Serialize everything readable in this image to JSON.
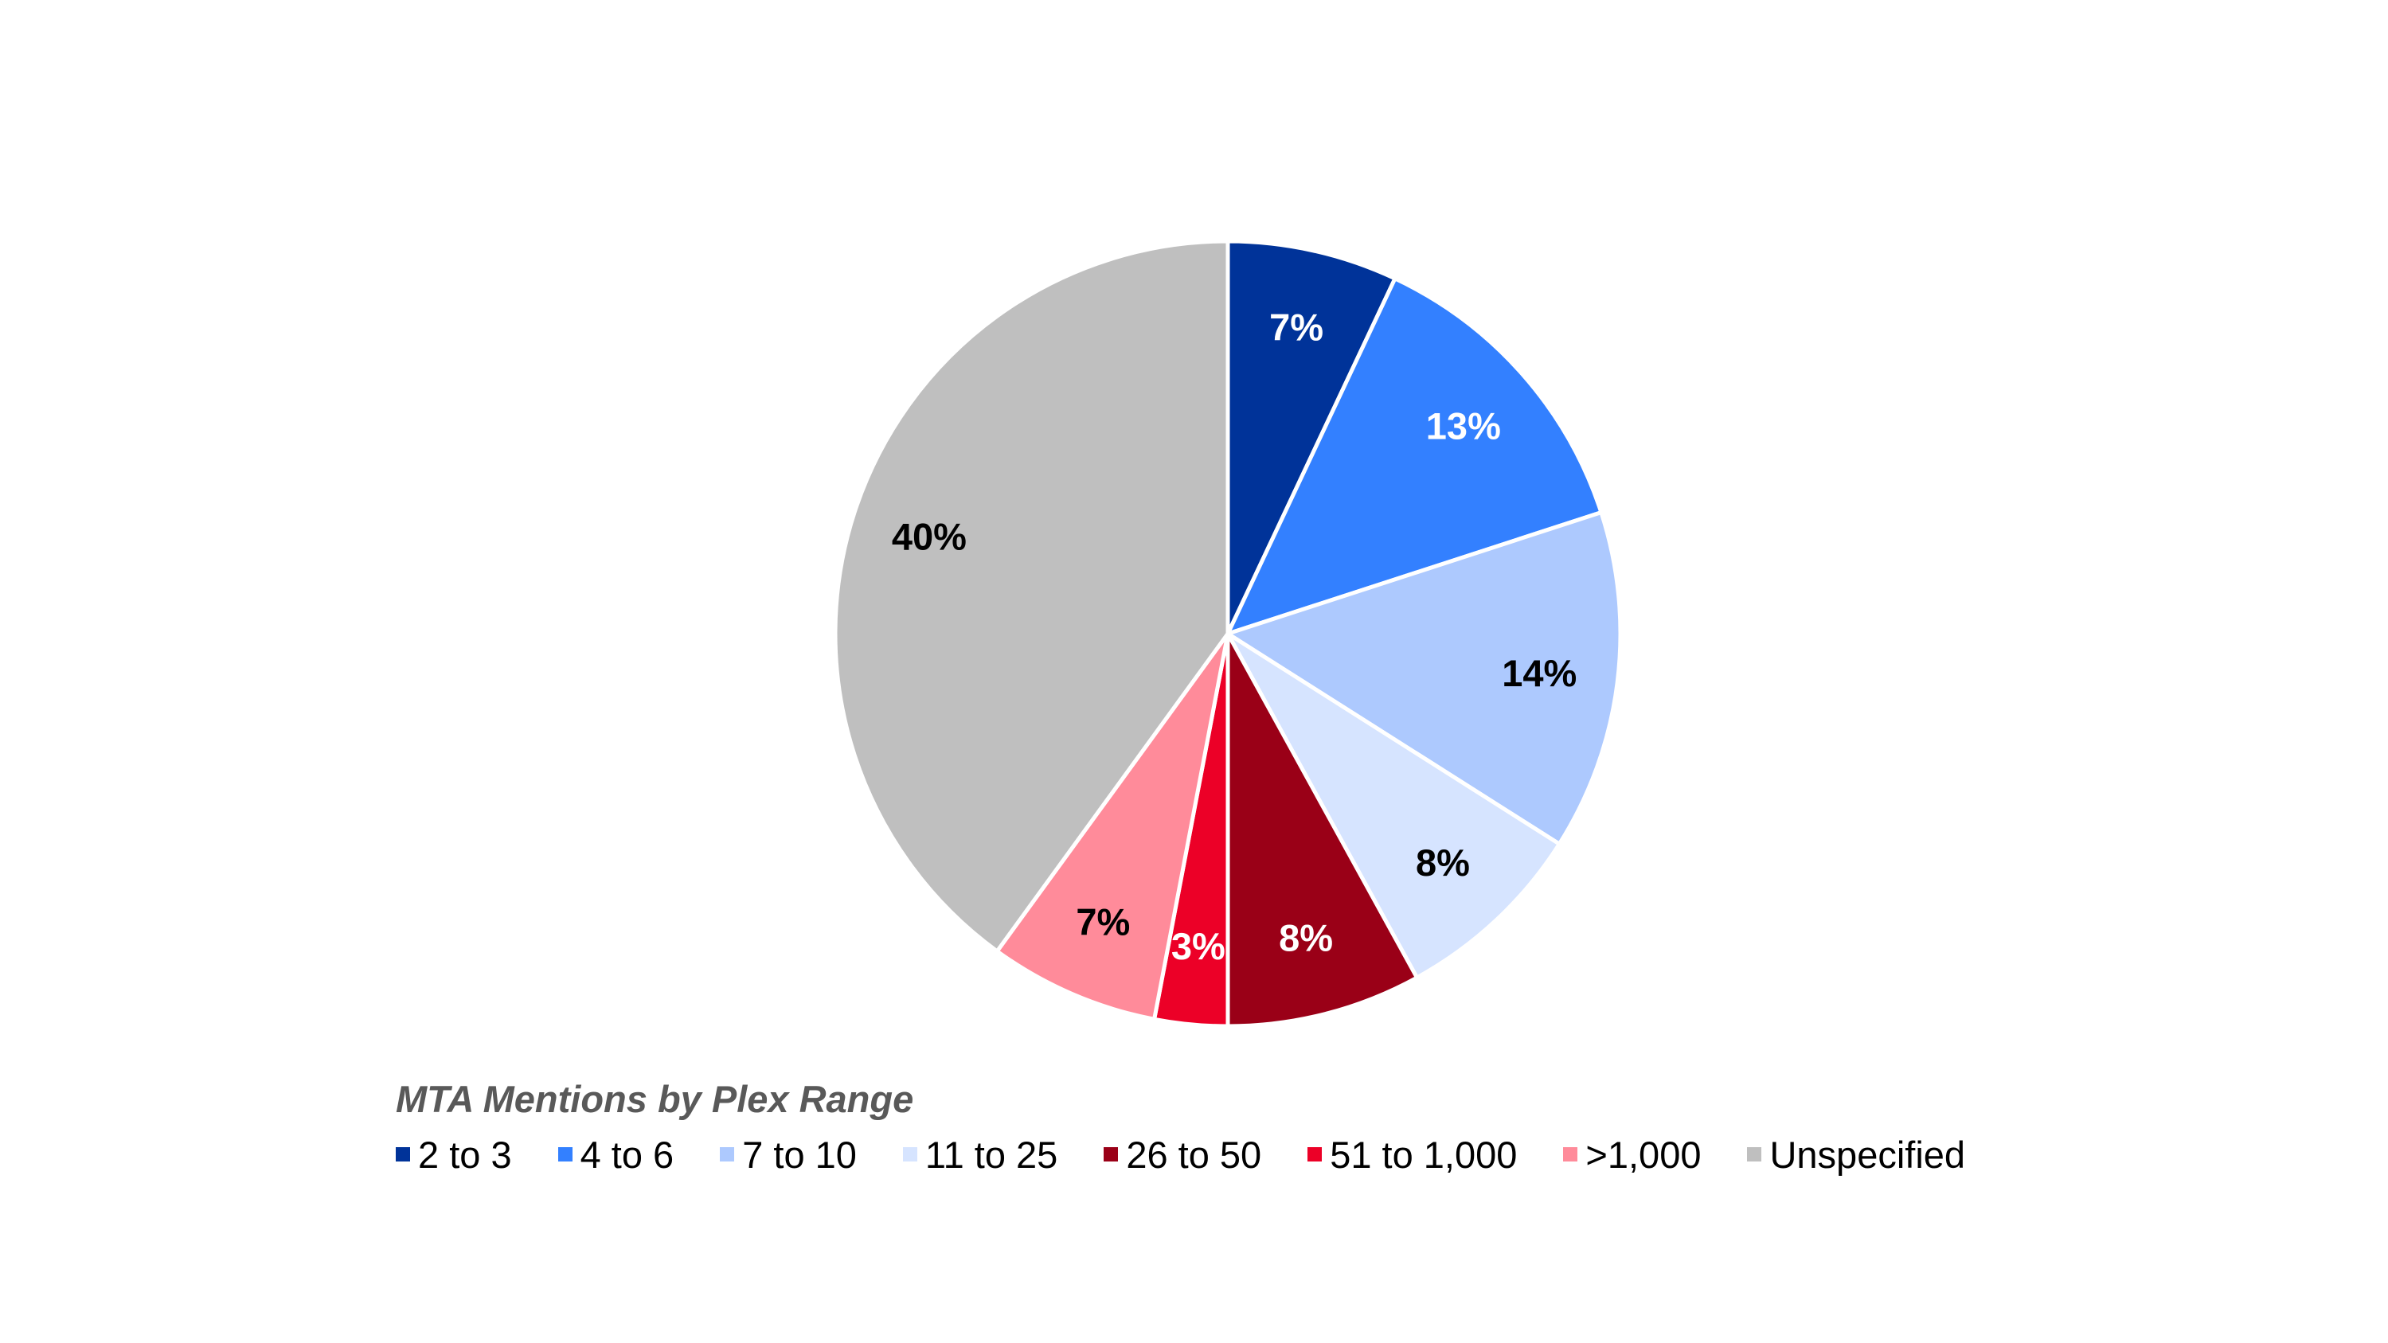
{
  "chart_data": {
    "type": "pie",
    "title": "MTA Mentions by Plex Range",
    "legend_position": "bottom",
    "slices": [
      {
        "label": "2 to 3",
        "value": 7,
        "display": "7%",
        "color": "#003399",
        "text_color": "#ffffff"
      },
      {
        "label": "4 to 6",
        "value": 13,
        "display": "13%",
        "color": "#3380FF",
        "text_color": "#ffffff"
      },
      {
        "label": "7 to 10",
        "value": 14,
        "display": "14%",
        "color": "#ADC9FE",
        "text_color": "#000000"
      },
      {
        "label": "11 to 25",
        "value": 8,
        "display": "8%",
        "color": "#D6E4FF",
        "text_color": "#000000"
      },
      {
        "label": "26 to 50",
        "value": 8,
        "display": "8%",
        "color": "#9A0017",
        "text_color": "#ffffff"
      },
      {
        "label": "51 to 1,000",
        "value": 3,
        "display": "3%",
        "color": "#EC0027",
        "text_color": "#ffffff"
      },
      {
        "label": ">1,000",
        "value": 7,
        "display": "7%",
        "color": "#FF8B9A",
        "text_color": "#000000"
      },
      {
        "label": "Unspecified",
        "value": 40,
        "display": "40%",
        "color": "#BFBFBF",
        "text_color": "#000000"
      }
    ]
  }
}
